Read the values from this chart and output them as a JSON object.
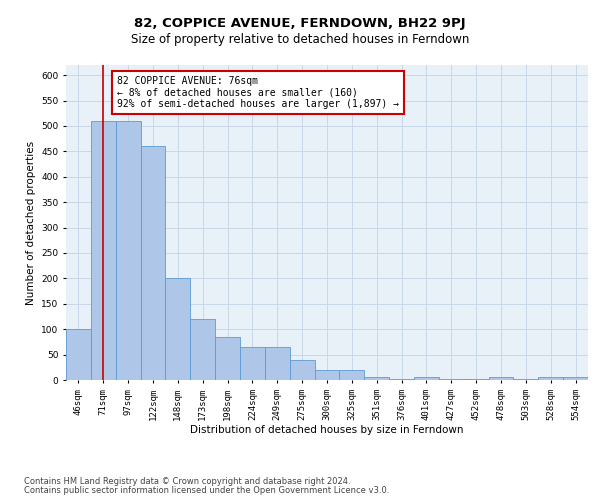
{
  "title": "82, COPPICE AVENUE, FERNDOWN, BH22 9PJ",
  "subtitle": "Size of property relative to detached houses in Ferndown",
  "xlabel": "Distribution of detached houses by size in Ferndown",
  "ylabel": "Number of detached properties",
  "bar_labels": [
    "46sqm",
    "71sqm",
    "97sqm",
    "122sqm",
    "148sqm",
    "173sqm",
    "198sqm",
    "224sqm",
    "249sqm",
    "275sqm",
    "300sqm",
    "325sqm",
    "351sqm",
    "376sqm",
    "401sqm",
    "427sqm",
    "452sqm",
    "478sqm",
    "503sqm",
    "528sqm",
    "554sqm"
  ],
  "bar_heights": [
    100,
    510,
    510,
    460,
    200,
    120,
    85,
    65,
    65,
    40,
    20,
    20,
    5,
    2,
    5,
    2,
    2,
    5,
    2,
    5,
    5
  ],
  "bar_color": "#aec6e8",
  "bar_edge_color": "#5b9bd5",
  "vline_x": 1,
  "vline_color": "#cc0000",
  "annotation_text": "82 COPPICE AVENUE: 76sqm\n← 8% of detached houses are smaller (160)\n92% of semi-detached houses are larger (1,897) →",
  "annotation_box_color": "#ffffff",
  "annotation_box_edge": "#cc0000",
  "ylim": [
    0,
    620
  ],
  "yticks": [
    0,
    50,
    100,
    150,
    200,
    250,
    300,
    350,
    400,
    450,
    500,
    550,
    600
  ],
  "footer_line1": "Contains HM Land Registry data © Crown copyright and database right 2024.",
  "footer_line2": "Contains public sector information licensed under the Open Government Licence v3.0.",
  "background_color": "#ffffff",
  "grid_color": "#c8d8e8",
  "title_fontsize": 9.5,
  "subtitle_fontsize": 8.5,
  "axis_label_fontsize": 7.5,
  "tick_fontsize": 6.5,
  "annotation_fontsize": 7.0,
  "footer_fontsize": 6.0
}
